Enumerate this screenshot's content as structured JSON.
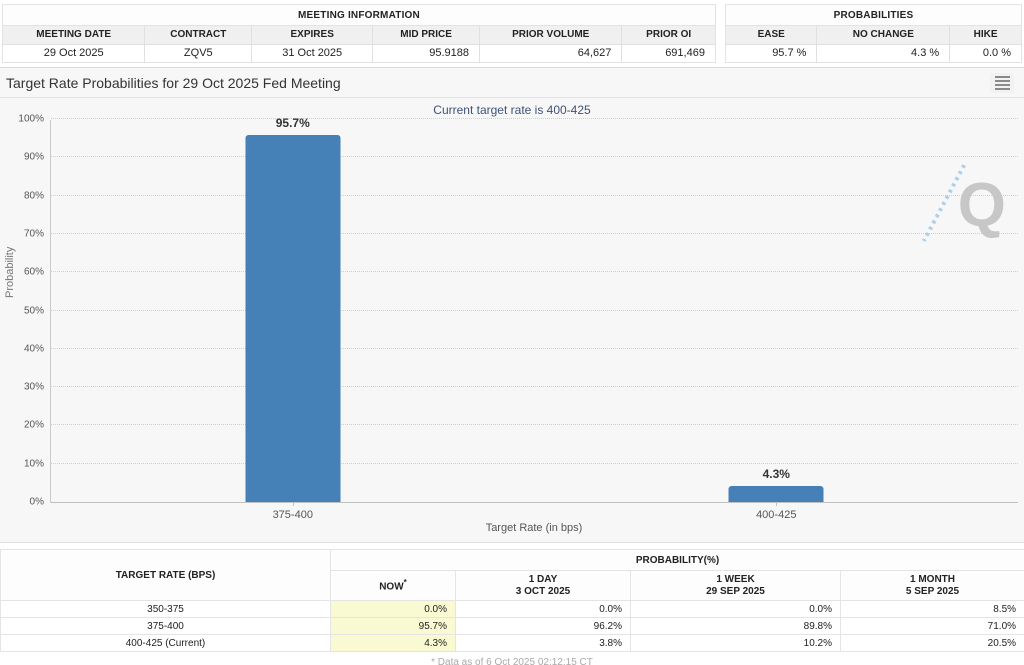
{
  "meeting_information": {
    "title": "MEETING INFORMATION",
    "columns": [
      "MEETING DATE",
      "CONTRACT",
      "EXPIRES",
      "MID PRICE",
      "PRIOR VOLUME",
      "PRIOR OI"
    ],
    "values": [
      "29 Oct 2025",
      "ZQV5",
      "31 Oct 2025",
      "95.9188",
      "64,627",
      "691,469"
    ]
  },
  "probabilities_summary": {
    "title": "PROBABILITIES",
    "columns": [
      "EASE",
      "NO CHANGE",
      "HIKE"
    ],
    "values": [
      "95.7 %",
      "4.3 %",
      "0.0 %"
    ]
  },
  "chart": {
    "title": "Target Rate Probabilities for 29 Oct 2025 Fed Meeting",
    "subtitle": "Current target rate is 400-425"
  },
  "chart_data": {
    "type": "bar",
    "title": "Target Rate Probabilities for 29 Oct 2025 Fed Meeting",
    "subtitle": "Current target rate is 400-425",
    "categories": [
      "375-400",
      "400-425"
    ],
    "values": [
      95.7,
      4.3
    ],
    "data_labels": [
      "95.7%",
      "4.3%"
    ],
    "xlabel": "Target Rate (in bps)",
    "ylabel": "Probability",
    "ylim": [
      0,
      100
    ],
    "ytick_step": 10,
    "ytick_suffix": "%",
    "grid": "dotted horizontal",
    "legend": "none",
    "bar_color": "#4581B6"
  },
  "bottom_table": {
    "rate_header": "TARGET RATE (BPS)",
    "group_header": "PROBABILITY(%)",
    "columns": [
      {
        "l1": "NOW",
        "sup": "*",
        "l2": ""
      },
      {
        "l1": "1 DAY",
        "l2": "3 OCT 2025"
      },
      {
        "l1": "1 WEEK",
        "l2": "29 SEP 2025"
      },
      {
        "l1": "1 MONTH",
        "l2": "5 SEP 2025"
      }
    ],
    "rows": [
      {
        "rate": "350-375",
        "now": "0.0%",
        "day1": "0.0%",
        "week1": "0.0%",
        "month1": "8.5%"
      },
      {
        "rate": "375-400",
        "now": "95.7%",
        "day1": "96.2%",
        "week1": "89.8%",
        "month1": "71.0%"
      },
      {
        "rate": "400-425 (Current)",
        "now": "4.3%",
        "day1": "3.8%",
        "week1": "10.2%",
        "month1": "20.5%"
      }
    ]
  },
  "footer": {
    "note": "* Data as of 6 Oct 2025 02:12:15 CT"
  },
  "colors": {
    "bar_blue": "#4581B6",
    "subtitle_navy": "#3e5178",
    "now_highlight": "#fafad2",
    "chart_background": "#f7f7f7",
    "watermark_gray": "#c7c7c7"
  }
}
